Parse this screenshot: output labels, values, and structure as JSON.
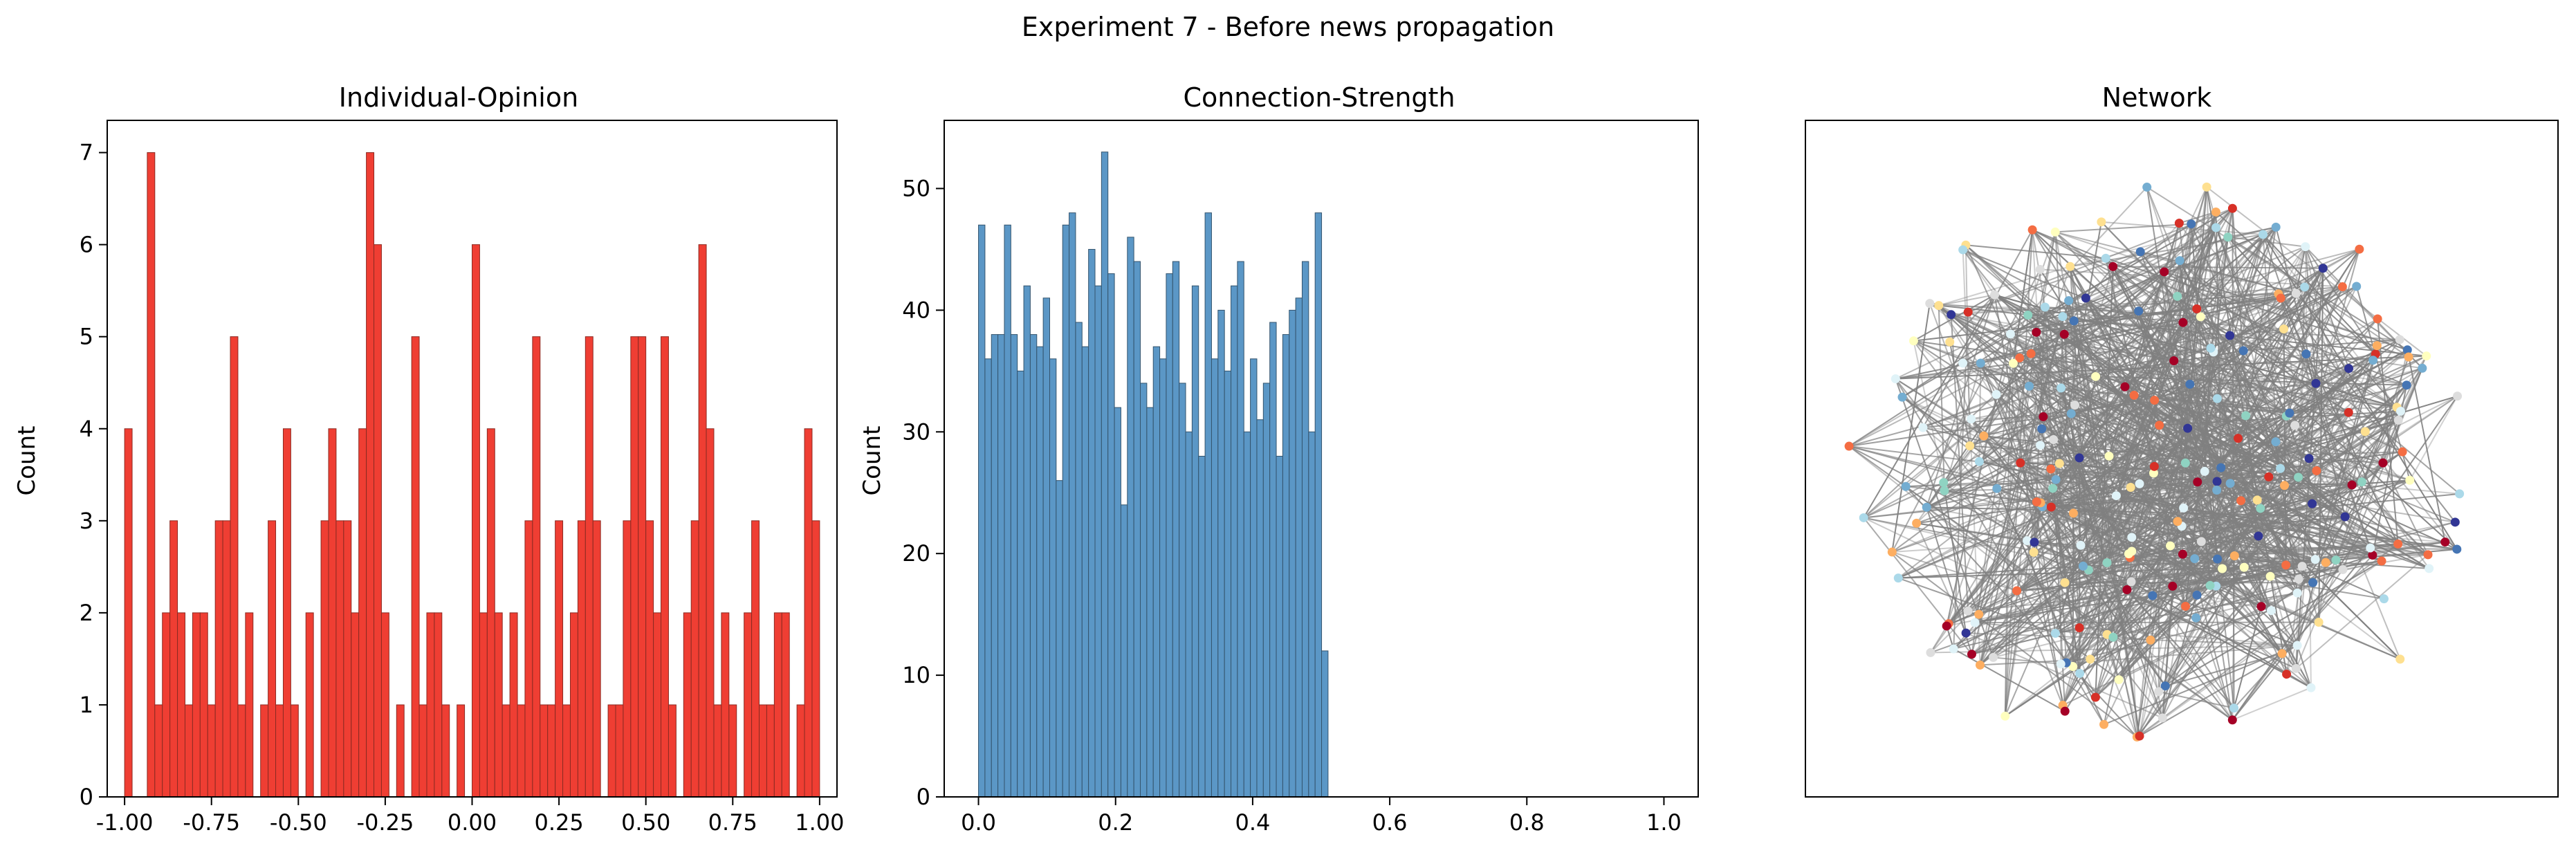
{
  "figure_title": "Experiment 7 - Before news propagation",
  "colors": {
    "opinion_bar": "#ef3e33",
    "opinion_edge": "#8b2a22",
    "strength_bar": "#5b97c6",
    "strength_edge": "#34546d",
    "network_edge": "#808080",
    "node_palette": [
      "#a50026",
      "#d73027",
      "#f46d43",
      "#fdae61",
      "#fee090",
      "#ffffbf",
      "#e0f3f8",
      "#abd9e9",
      "#74add1",
      "#4575b4",
      "#313695",
      "#8fd3c2",
      "#dddddd"
    ]
  },
  "chart_data": [
    {
      "type": "bar",
      "title": "Individual-Opinion",
      "xlabel": "",
      "ylabel": "Count",
      "xlim": [
        -1.05,
        1.05
      ],
      "ylim": [
        0,
        7.35
      ],
      "xticks": [
        "-1.00",
        "-0.75",
        "-0.50",
        "-0.25",
        "0.00",
        "0.25",
        "0.50",
        "0.75",
        "1.00"
      ],
      "yticks": [
        "0",
        "1",
        "2",
        "3",
        "4",
        "5",
        "6",
        "7"
      ],
      "bin_range": [
        -1.0,
        1.0
      ],
      "values": [
        4,
        0,
        0,
        7,
        1,
        2,
        3,
        2,
        1,
        2,
        2,
        1,
        3,
        3,
        5,
        1,
        2,
        0,
        1,
        3,
        1,
        4,
        1,
        0,
        2,
        0,
        3,
        4,
        3,
        3,
        2,
        4,
        7,
        6,
        2,
        0,
        1,
        0,
        5,
        1,
        2,
        2,
        1,
        0,
        1,
        0,
        6,
        2,
        4,
        2,
        1,
        2,
        1,
        3,
        5,
        1,
        1,
        3,
        1,
        2,
        3,
        5,
        3,
        0,
        1,
        1,
        3,
        5,
        5,
        3,
        2,
        5,
        1,
        0,
        2,
        3,
        6,
        4,
        1,
        2,
        1,
        0,
        2,
        3,
        1,
        1,
        2,
        2,
        0,
        1,
        4,
        3
      ],
      "bar_color": "#ef3e33"
    },
    {
      "type": "bar",
      "title": "Connection-Strength",
      "xlabel": "",
      "ylabel": "Count",
      "xlim": [
        -0.05,
        1.05
      ],
      "ylim": [
        0,
        55.6
      ],
      "xticks": [
        "0.0",
        "0.2",
        "0.4",
        "0.6",
        "0.8",
        "1.0"
      ],
      "yticks": [
        "0",
        "10",
        "20",
        "30",
        "40",
        "50"
      ],
      "bin_range": [
        0.0,
        0.51
      ],
      "values": [
        47,
        36,
        38,
        38,
        47,
        38,
        35,
        42,
        38,
        37,
        41,
        36,
        26,
        47,
        48,
        39,
        37,
        45,
        42,
        53,
        43,
        32,
        24,
        46,
        44,
        34,
        32,
        37,
        36,
        43,
        44,
        34,
        30,
        42,
        28,
        48,
        36,
        40,
        35,
        42,
        44,
        30,
        36,
        31,
        34,
        39,
        28,
        38,
        40,
        41,
        44,
        30,
        48,
        12
      ],
      "bar_color": "#5b97c6"
    }
  ],
  "network": {
    "title": "Network"
  }
}
